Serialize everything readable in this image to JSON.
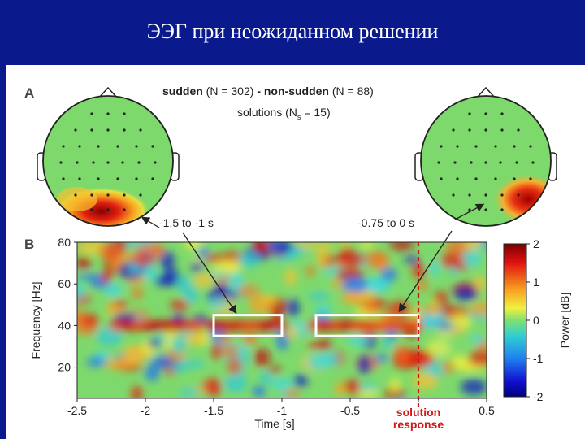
{
  "slide": {
    "title": "ЭЭГ при неожиданном решении",
    "colors": {
      "title_bar": "#0a1a8c",
      "highlight_box": "#ffffff",
      "marker": "#d01818"
    }
  },
  "panel_a": {
    "label": "A",
    "header_bold_1": "sudden",
    "header_n1": "(N = 302)",
    "header_dash": "-",
    "header_bold_2": "non-sudden",
    "header_n2": "(N = 88)",
    "header_line2": "solutions (N",
    "header_sub": "s",
    "header_line2_end": "= 15)",
    "left_range": "-1.5 to -1 s",
    "right_range": "-0.75 to 0 s",
    "left_topomap_icon": "head-topomap-icon",
    "right_topomap_icon": "head-topomap-icon"
  },
  "chart_data": {
    "type": "heatmap",
    "panel_label": "B",
    "xlabel": "Time [s]",
    "ylabel": "Frequency [Hz]",
    "xlim": [
      -2.5,
      0.5
    ],
    "ylim": [
      5,
      80
    ],
    "x_ticks": [
      "-2.5",
      "-2",
      "-1.5",
      "-1",
      "-0.5",
      "0",
      "0.5"
    ],
    "y_ticks": [
      "20",
      "40",
      "60",
      "80"
    ],
    "colorbar": {
      "label": "Power [dB]",
      "range": [
        -2,
        2
      ],
      "ticks": [
        "2",
        "1",
        "0",
        "-1",
        "-2"
      ]
    },
    "highlight_windows": [
      {
        "t_start": -1.5,
        "t_end": -1.0,
        "f_low": 35,
        "f_high": 45
      },
      {
        "t_start": -0.75,
        "t_end": 0.0,
        "f_low": 35,
        "f_high": 45
      }
    ],
    "event_marker": {
      "t": 0,
      "label_line1": "solution",
      "label_line2": "response"
    }
  }
}
